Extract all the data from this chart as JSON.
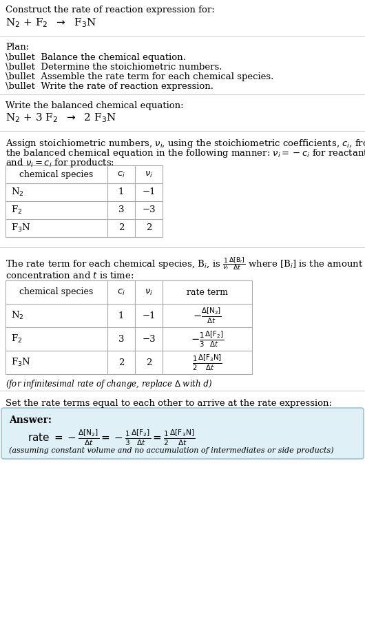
{
  "bg_color": "#ffffff",
  "text_color": "#000000",
  "table_line_color": "#aaaaaa",
  "answer_box_color": "#dff0f7",
  "answer_border_color": "#90b8cc",
  "font_size": 9.5,
  "sections": {
    "s1_line1": "Construct the rate of reaction expression for:",
    "s1_line2_math": "N$_2$ + F$_2$  $\\rightarrow$  F$_3$N",
    "s2_header": "Plan:",
    "s2_items": [
      "\\bullet  Balance the chemical equation.",
      "\\bullet  Determine the stoichiometric numbers.",
      "\\bullet  Assemble the rate term for each chemical species.",
      "\\bullet  Write the rate of reaction expression."
    ],
    "s3_header": "Write the balanced chemical equation:",
    "s3_eq": "N$_2$ + 3 F$_2$  $\\rightarrow$  2 F$_3$N",
    "s4_line1": "Assign stoichiometric numbers, $\\nu_i$, using the stoichiometric coefficients, $c_i$, from",
    "s4_line2": "the balanced chemical equation in the following manner: $\\nu_i = -c_i$ for reactants",
    "s4_line3": "and $\\nu_i = c_i$ for products:",
    "s5_line1a": "The rate term for each chemical species, B$_i$, is $\\frac{1}{\\nu_i}\\frac{\\Delta[\\mathrm{B}_i]}{\\Delta t}$ where [B$_i$] is the amount",
    "s5_line2": "concentration and $t$ is time:",
    "s5_note": "(for infinitesimal rate of change, replace $\\Delta$ with $d$)",
    "s6_header": "Set the rate terms equal to each other to arrive at the rate expression:",
    "answer_label": "Answer:",
    "answer_eq": "rate $= -\\frac{\\Delta[\\mathrm{N_2}]}{\\Delta t} = -\\frac{1}{3}\\frac{\\Delta[\\mathrm{F_2}]}{\\Delta t} = \\frac{1}{2}\\frac{\\Delta[\\mathrm{F_3N}]}{\\Delta t}$",
    "answer_note": "(assuming constant volume and no accumulation of intermediates or side products)"
  }
}
